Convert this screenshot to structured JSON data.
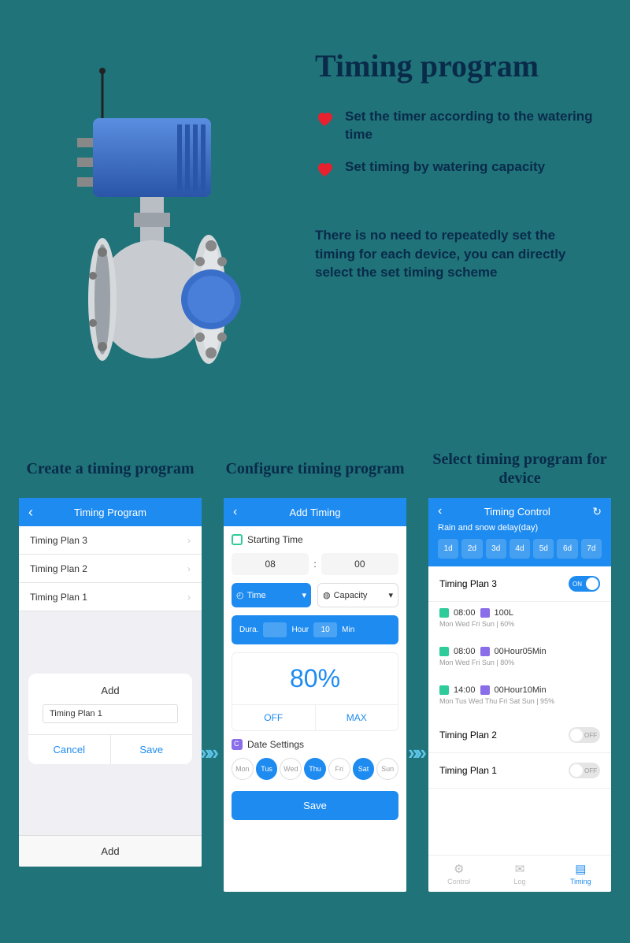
{
  "main_title": "Timing program",
  "bullets": [
    "Set the timer according to the watering time",
    "Set timing by watering capacity"
  ],
  "description": "There is no need to repeatedly set the timing for each device, you can directly select the set timing scheme",
  "colors": {
    "background": "#1f7379",
    "title": "#0a2a4a",
    "heart": "#e8212e",
    "arrow": "#5ec5e8",
    "primary_blue": "#1e8bf0",
    "teal_accent": "#2ecc9a",
    "purple_accent": "#8a6de8"
  },
  "phone_labels": [
    "Create a timing program",
    "Configure timing program",
    "Select timing program for device"
  ],
  "phone1": {
    "title": "Timing Program",
    "items": [
      "Timing Plan 3",
      "Timing Plan 2",
      "Timing Plan 1"
    ],
    "dialog": {
      "title": "Add",
      "input": "Timing Plan 1",
      "cancel": "Cancel",
      "save": "Save"
    },
    "footer": "Add"
  },
  "phone2": {
    "title": "Add Timing",
    "starting_label": "Starting Time",
    "time_hour": "08",
    "time_min": "00",
    "mode_time": "Time",
    "mode_capacity": "Capacity",
    "dura_label": "Dura.",
    "dura_hour_label": "Hour",
    "dura_min_val": "10",
    "dura_min_label": "Min",
    "percent": "80%",
    "off": "OFF",
    "max": "MAX",
    "date_label": "Date Settings",
    "days": [
      "Mon",
      "Tus",
      "Wed",
      "Thu",
      "Fri",
      "Sat",
      "Sun"
    ],
    "days_active": [
      false,
      true,
      false,
      true,
      false,
      true,
      false
    ],
    "save": "Save"
  },
  "phone3": {
    "title": "Timing Control",
    "subtitle": "Rain and snow delay(day)",
    "delays": [
      "1d",
      "2d",
      "3d",
      "4d",
      "5d",
      "6d",
      "7d"
    ],
    "plan3": {
      "name": "Timing Plan 3",
      "schedules": [
        {
          "time": "08:00",
          "cap": "100L",
          "days": "Mon  Wed  Fri  Sun  |  60%"
        },
        {
          "time": "08:00",
          "cap": "00Hour05Min",
          "days": "Mon  Wed  Fri  Sun  |  80%"
        },
        {
          "time": "14:00",
          "cap": "00Hour10Min",
          "days": "Mon  Tus  Wed  Thu  Fri  Sat  Sun  |  95%"
        }
      ]
    },
    "plan2": "Timing Plan 2",
    "plan1": "Timing Plan 1",
    "nav": [
      "Control",
      "Log",
      "Timing"
    ]
  }
}
